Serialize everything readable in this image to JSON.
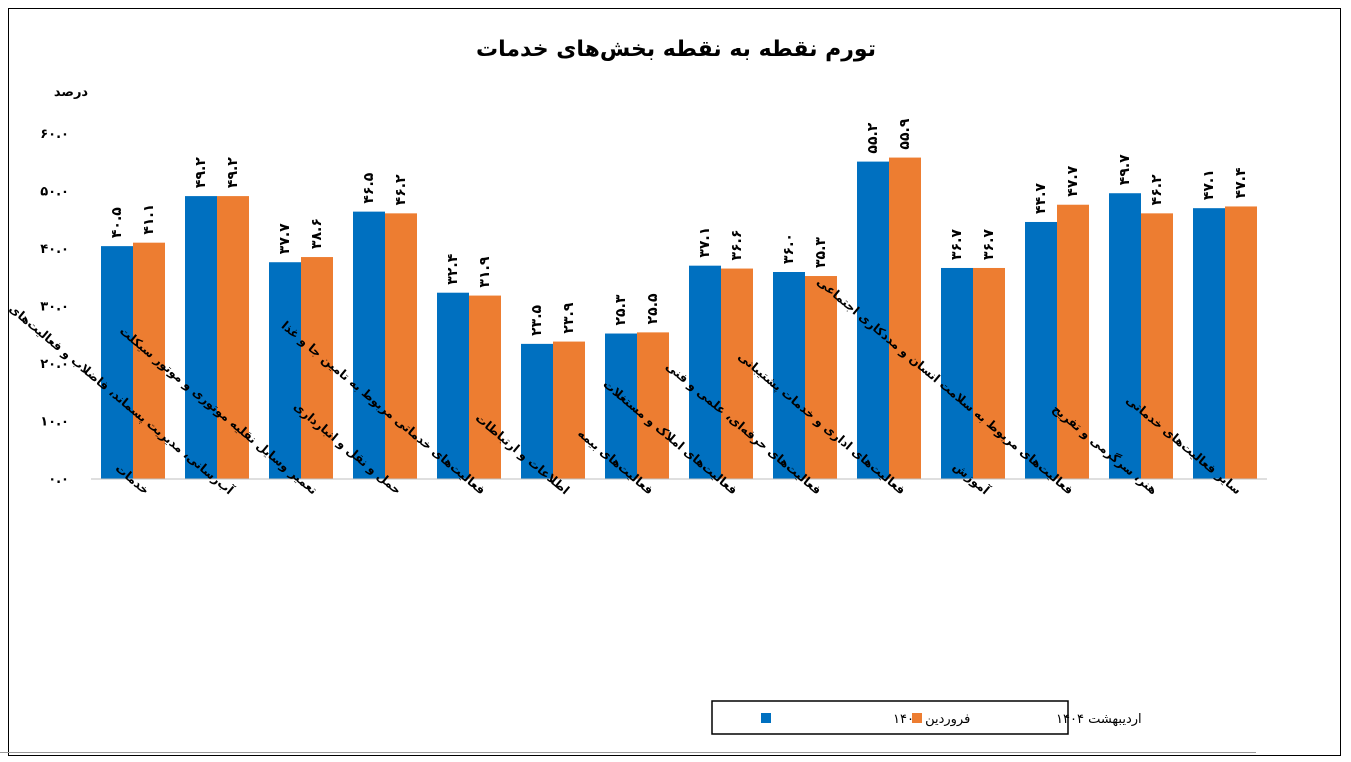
{
  "chart_data": {
    "type": "bar",
    "title": "تورم نقطه به نقطه بخش‌های خدمات",
    "ylabel": "درصد",
    "ylim": [
      0,
      60
    ],
    "yticks": [
      0,
      10,
      20,
      30,
      40,
      50,
      60
    ],
    "ytick_labels": [
      "۰.۰",
      "۱۰.۰",
      "۲۰.۰",
      "۳۰.۰",
      "۴۰.۰",
      "۵۰.۰",
      "۶۰.۰"
    ],
    "grid": false,
    "legend_position": "bottom",
    "categories": [
      "خدمات",
      "آب‌رسانی، مدیریت پسماند، فاضلاب و فعالیت‌های تصفیه",
      "تعمیر وسایل نقلیه موتوری و موتور سیکلت",
      "حمل و نقل و انبارداری",
      "فعالیت‌های خدماتی مربوط به تامین جا و غذا",
      "اطلاعات و ارتباطات",
      "فعالیت‌های بیمه",
      "فعالیت‌های املاک و مستغلات",
      "فعالیت‌های حرفه‌ای، علمی و فنی",
      "فعالیت‌های اداری و خدمات پشتیبانی",
      "آموزش",
      "فعالیت‌های مربوط به سلامت انسان و مددکاری اجتماعی",
      "هنر، سرگرمی و تفریح",
      "سایر فعالیت‌های خدماتی"
    ],
    "series": [
      {
        "name": "فروردین ۱۴۰۴",
        "color": "#0070C0",
        "values": [
          40.5,
          49.2,
          37.7,
          46.5,
          32.4,
          23.5,
          25.3,
          37.1,
          36.0,
          55.2,
          36.7,
          44.7,
          49.7,
          47.1
        ],
        "labels": [
          "۴۰.۵",
          "۴۹.۲",
          "۳۷.۷",
          "۴۶.۵",
          "۳۲.۴",
          "۲۳.۵",
          "۲۵.۳",
          "۳۷.۱",
          "۳۶.۰",
          "۵۵.۲",
          "۳۶.۷",
          "۴۴.۷",
          "۴۹.۷",
          "۴۷.۱"
        ]
      },
      {
        "name": "اردیبهشت ۱۴۰۴",
        "color": "#ED7D31",
        "values": [
          41.1,
          49.2,
          38.6,
          46.2,
          31.9,
          23.9,
          25.5,
          36.6,
          35.3,
          55.9,
          36.7,
          47.7,
          46.2,
          47.4
        ],
        "labels": [
          "۴۱.۱",
          "۴۹.۲",
          "۳۸.۶",
          "۴۶.۲",
          "۳۱.۹",
          "۲۳.۹",
          "۲۵.۵",
          "۳۶.۶",
          "۳۵.۳",
          "۵۵.۹",
          "۳۶.۷",
          "۴۷.۷",
          "۴۶.۲",
          "۴۷.۴"
        ]
      }
    ]
  }
}
